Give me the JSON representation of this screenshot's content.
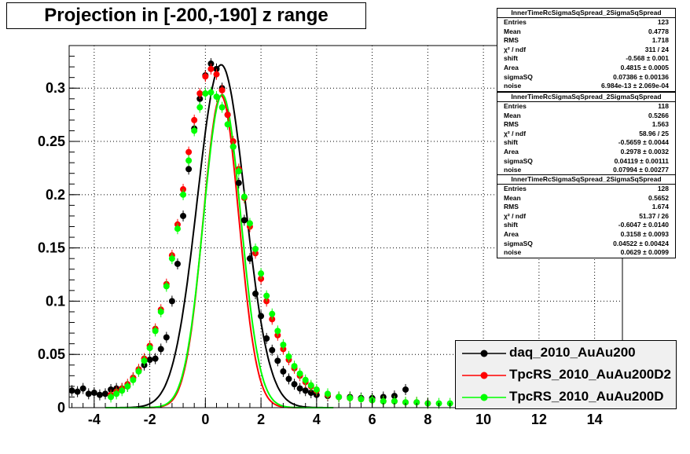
{
  "chart_data": {
    "type": "scatter",
    "title": "Projection in [-200,-190] z range",
    "xlim": [
      -4.9,
      15.0
    ],
    "ylim": [
      0,
      0.34
    ],
    "x_ticks": [
      -4,
      -2,
      0,
      2,
      4,
      6,
      8,
      10,
      12,
      14
    ],
    "x_tick_labels": [
      "-4",
      "-2",
      "0",
      "2",
      "4",
      "6",
      "8",
      "10",
      "12",
      "14"
    ],
    "y_ticks": [
      0,
      0.05,
      0.1,
      0.15,
      0.2,
      0.25,
      0.3
    ],
    "y_tick_labels": [
      "0",
      "0.05",
      "0.1",
      "0.15",
      "0.2",
      "0.25",
      "0.3"
    ],
    "grid": true,
    "legend_position": "bottom-right",
    "series": [
      {
        "name": "daq_2010_AuAu200",
        "color": "#000000",
        "x": [
          -4.8,
          -4.6,
          -4.4,
          -4.2,
          -4.0,
          -3.8,
          -3.6,
          -3.4,
          -3.2,
          -3.0,
          -2.8,
          -2.6,
          -2.4,
          -2.2,
          -2.0,
          -1.8,
          -1.6,
          -1.4,
          -1.2,
          -1.0,
          -0.8,
          -0.6,
          -0.4,
          -0.2,
          0.0,
          0.2,
          0.4,
          0.6,
          0.8,
          1.0,
          1.2,
          1.4,
          1.6,
          1.8,
          2.0,
          2.2,
          2.4,
          2.6,
          2.8,
          3.0,
          3.2,
          3.4,
          3.6,
          3.8,
          4.0,
          4.4,
          4.8,
          5.2,
          5.6,
          6.0,
          6.4,
          6.8,
          7.2
        ],
        "y": [
          0.016,
          0.015,
          0.018,
          0.013,
          0.014,
          0.012,
          0.013,
          0.017,
          0.018,
          0.018,
          0.02,
          0.028,
          0.035,
          0.04,
          0.045,
          0.046,
          0.055,
          0.066,
          0.1,
          0.135,
          0.18,
          0.224,
          0.262,
          0.29,
          0.312,
          0.323,
          0.318,
          0.3,
          0.275,
          0.245,
          0.211,
          0.176,
          0.14,
          0.107,
          0.086,
          0.065,
          0.054,
          0.044,
          0.034,
          0.027,
          0.022,
          0.018,
          0.016,
          0.014,
          0.012,
          0.011,
          0.01,
          0.01,
          0.009,
          0.009,
          0.01,
          0.011,
          0.017
        ]
      },
      {
        "name": "TpcRS_2010_AuAu200D2",
        "color": "#ff0000",
        "x": [
          -3.4,
          -3.2,
          -3.0,
          -2.8,
          -2.6,
          -2.4,
          -2.2,
          -2.0,
          -1.8,
          -1.6,
          -1.4,
          -1.2,
          -1.0,
          -0.8,
          -0.6,
          -0.4,
          -0.2,
          0.0,
          0.2,
          0.4,
          0.6,
          0.8,
          1.0,
          1.2,
          1.4,
          1.6,
          1.8,
          2.0,
          2.2,
          2.4,
          2.6,
          2.8,
          3.0,
          3.2,
          3.4,
          3.6,
          3.8,
          4.0,
          4.4,
          4.8,
          5.2,
          5.6,
          6.0,
          6.4,
          6.8,
          7.2,
          7.6,
          8.0
        ],
        "y": [
          0.012,
          0.015,
          0.018,
          0.022,
          0.028,
          0.036,
          0.046,
          0.058,
          0.074,
          0.092,
          0.116,
          0.143,
          0.172,
          0.205,
          0.24,
          0.27,
          0.295,
          0.311,
          0.318,
          0.313,
          0.298,
          0.275,
          0.25,
          0.224,
          0.197,
          0.17,
          0.145,
          0.121,
          0.1,
          0.083,
          0.068,
          0.055,
          0.045,
          0.037,
          0.03,
          0.024,
          0.02,
          0.016,
          0.012,
          0.01,
          0.009,
          0.008,
          0.007,
          0.006,
          0.006,
          0.005,
          0.005,
          0.004
        ]
      },
      {
        "name": "TpcRS_2010_AuAu200D",
        "color": "#00ff00",
        "x": [
          -3.4,
          -3.2,
          -3.0,
          -2.8,
          -2.6,
          -2.4,
          -2.2,
          -2.0,
          -1.8,
          -1.6,
          -1.4,
          -1.2,
          -1.0,
          -0.8,
          -0.6,
          -0.4,
          -0.2,
          0.0,
          0.2,
          0.4,
          0.6,
          0.8,
          1.0,
          1.2,
          1.4,
          1.6,
          1.8,
          2.0,
          2.2,
          2.4,
          2.6,
          2.8,
          3.0,
          3.2,
          3.4,
          3.6,
          3.8,
          4.0,
          4.4,
          4.8,
          5.2,
          5.6,
          6.0,
          6.4,
          6.8,
          7.2,
          7.6,
          8.0,
          8.4,
          8.8
        ],
        "y": [
          0.01,
          0.013,
          0.016,
          0.02,
          0.026,
          0.034,
          0.044,
          0.056,
          0.072,
          0.09,
          0.114,
          0.14,
          0.168,
          0.2,
          0.232,
          0.26,
          0.282,
          0.295,
          0.296,
          0.292,
          0.282,
          0.266,
          0.245,
          0.222,
          0.198,
          0.173,
          0.149,
          0.126,
          0.105,
          0.088,
          0.072,
          0.059,
          0.048,
          0.039,
          0.032,
          0.026,
          0.021,
          0.017,
          0.013,
          0.01,
          0.009,
          0.008,
          0.007,
          0.006,
          0.006,
          0.005,
          0.005,
          0.004,
          0.004,
          0.004
        ]
      }
    ],
    "fits": [
      {
        "color": "#000000",
        "shift": -0.568,
        "sigmaSQ": 0.07386,
        "area": 0.4815,
        "peak": 0.322
      },
      {
        "color": "#ff0000",
        "shift": -0.5659,
        "sigmaSQ": 0.04119,
        "area": 0.2978,
        "peak": 0.293
      },
      {
        "color": "#00ff00",
        "shift": -0.6047,
        "sigmaSQ": 0.04522,
        "area": 0.3158,
        "peak": 0.294
      }
    ]
  },
  "stats": [
    {
      "name": "InnerTimeRcSigmaSqSpread_2SigmaSqSpread",
      "rows": [
        {
          "label": "Entries",
          "value": "123"
        },
        {
          "label": "Mean",
          "value": "0.4778"
        },
        {
          "label": "RMS",
          "value": "1.718"
        },
        {
          "label": "χ² / ndf",
          "value": "311 / 24"
        },
        {
          "label": "shift",
          "value": "-0.568 ± 0.001"
        },
        {
          "label": "Area",
          "value": "0.4815 ± 0.0005"
        },
        {
          "label": "sigmaSQ",
          "value": "0.07386 ± 0.00136"
        },
        {
          "label": "noise",
          "value": "6.984e-13 ± 2.069e-04"
        }
      ]
    },
    {
      "name": "InnerTimeRcSigmaSqSpread_2SigmaSqSpread",
      "rows": [
        {
          "label": "Entries",
          "value": "118"
        },
        {
          "label": "Mean",
          "value": "0.5266"
        },
        {
          "label": "RMS",
          "value": "1.563"
        },
        {
          "label": "χ² / ndf",
          "value": "58.96 / 25"
        },
        {
          "label": "shift",
          "value": "-0.5659 ± 0.0044"
        },
        {
          "label": "Area",
          "value": "0.2978 ± 0.0032"
        },
        {
          "label": "sigmaSQ",
          "value": "0.04119 ± 0.00111"
        },
        {
          "label": "noise",
          "value": "0.07994 ± 0.00277"
        }
      ]
    },
    {
      "name": "InnerTimeRcSigmaSqSpread_2SigmaSqSpread",
      "rows": [
        {
          "label": "Entries",
          "value": "128"
        },
        {
          "label": "Mean",
          "value": "0.5652"
        },
        {
          "label": "RMS",
          "value": "1.674"
        },
        {
          "label": "χ² / ndf",
          "value": "51.37 / 26"
        },
        {
          "label": "shift",
          "value": "-0.6047 ± 0.0140"
        },
        {
          "label": "Area",
          "value": "0.3158 ± 0.0093"
        },
        {
          "label": "sigmaSQ",
          "value": "0.04522 ± 0.00424"
        },
        {
          "label": "noise",
          "value": "0.0629 ± 0.0099"
        }
      ]
    }
  ]
}
